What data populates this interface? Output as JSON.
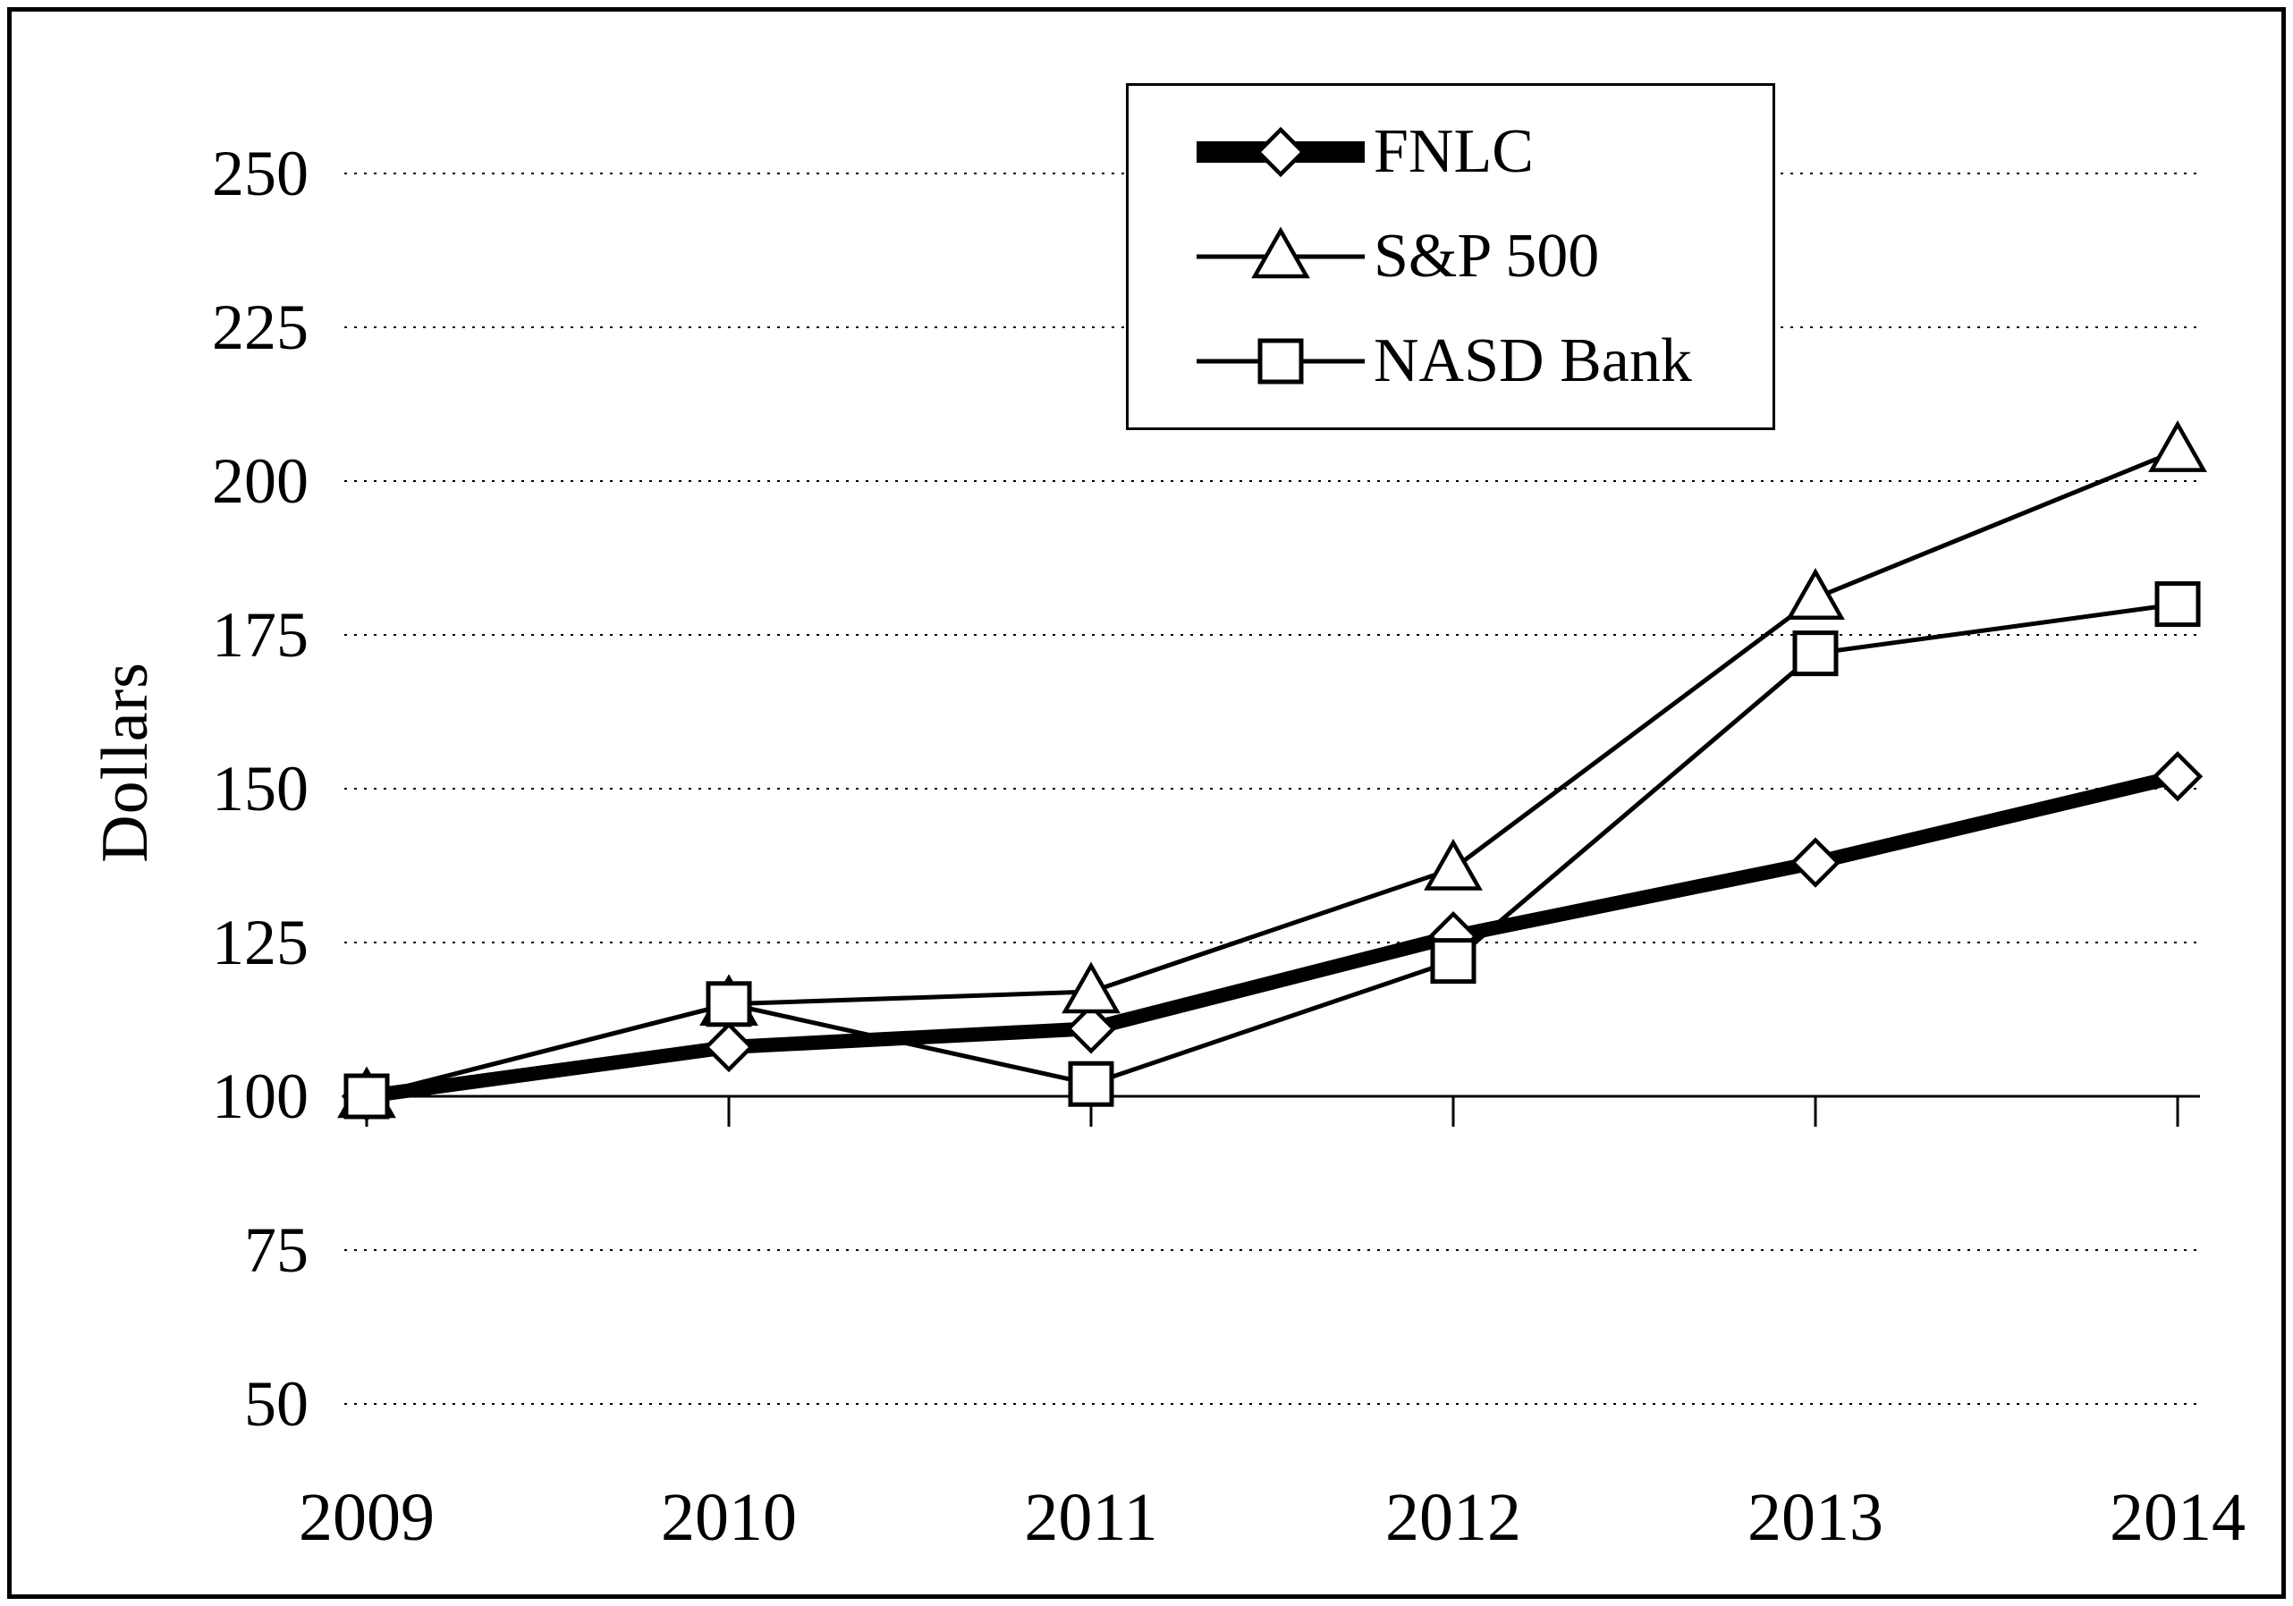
{
  "chart_data": {
    "type": "line",
    "title": "",
    "xlabel": "",
    "ylabel": "Dollars",
    "ylim": [
      50,
      250
    ],
    "ytick_step": 25,
    "grid": "horizontal-dotted",
    "legend_position": "top-center",
    "categories": [
      "2009",
      "2010",
      "2011",
      "2012",
      "2013",
      "2014"
    ],
    "series": [
      {
        "name": "FNLC",
        "marker": "diamond",
        "line": "thick",
        "values": [
          100,
          108,
          111,
          126,
          138,
          152
        ]
      },
      {
        "name": "S&P 500",
        "marker": "triangle",
        "line": "thin",
        "values": [
          100,
          115,
          117,
          137,
          181,
          205
        ]
      },
      {
        "name": "NASD Bank",
        "marker": "square",
        "line": "thin",
        "values": [
          100,
          115,
          102,
          122,
          172,
          180
        ]
      }
    ],
    "colors": {
      "line": "#000000",
      "marker_fill": "#ffffff",
      "background": "#ffffff"
    }
  }
}
